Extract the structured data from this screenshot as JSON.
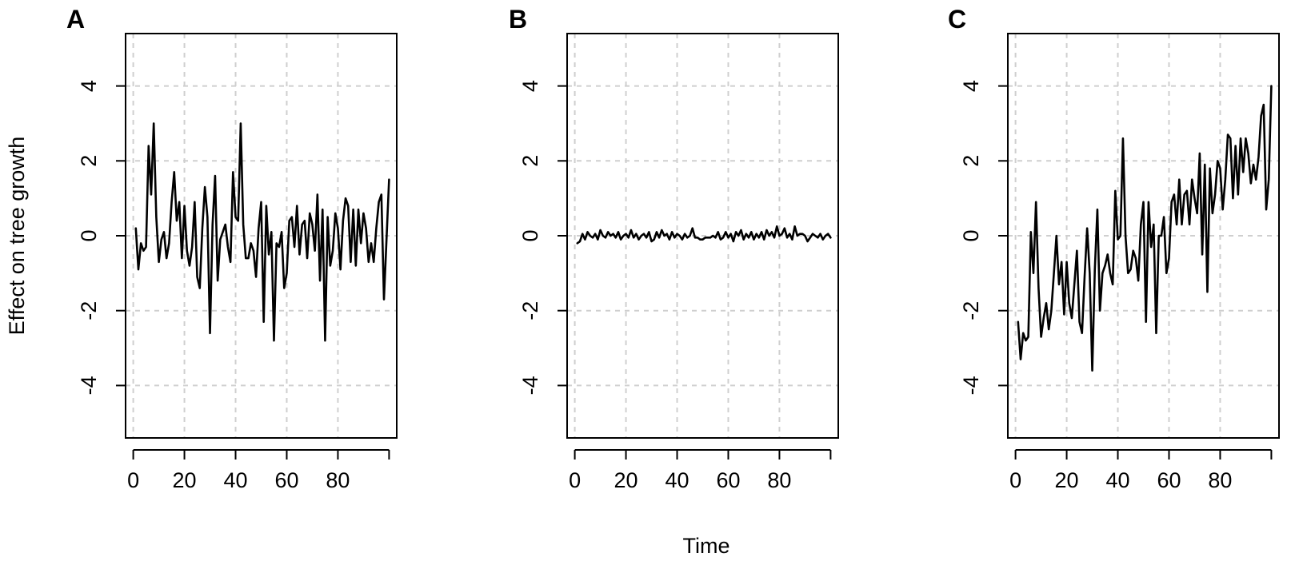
{
  "chart_data": {
    "type": "line",
    "xlabel": "Time",
    "ylabel": "Effect on tree growth",
    "xlim": [
      -3,
      103
    ],
    "ylim": [
      -5.4,
      5.4
    ],
    "x_ticks": [
      0,
      20,
      40,
      60,
      80
    ],
    "y_ticks": [
      -4,
      -2,
      0,
      2,
      4
    ],
    "grid": true,
    "panels": [
      {
        "label": "A",
        "series": [
          {
            "x": [
              1,
              2,
              3,
              4,
              5,
              6,
              7,
              8,
              9,
              10,
              11,
              12,
              13,
              14,
              15,
              16,
              17,
              18,
              19,
              20,
              21,
              22,
              23,
              24,
              25,
              26,
              27,
              28,
              29,
              30,
              31,
              32,
              33,
              34,
              35,
              36,
              37,
              38,
              39,
              40,
              41,
              42,
              43,
              44,
              45,
              46,
              47,
              48,
              49,
              50,
              51,
              52,
              53,
              54,
              55,
              56,
              57,
              58,
              59,
              60,
              61,
              62,
              63,
              64,
              65,
              66,
              67,
              68,
              69,
              70,
              71,
              72,
              73,
              74,
              75,
              76,
              77,
              78,
              79,
              80,
              81,
              82,
              83,
              84,
              85,
              86,
              87,
              88,
              89,
              90,
              91,
              92,
              93,
              94,
              95,
              96,
              97,
              98,
              99,
              100
            ],
            "y": [
              0.2,
              -0.9,
              -0.2,
              -0.4,
              -0.3,
              2.4,
              1.1,
              3.0,
              0.5,
              -0.7,
              -0.1,
              0.1,
              -0.6,
              -0.2,
              0.9,
              1.7,
              0.4,
              0.9,
              -0.6,
              0.8,
              -0.4,
              -0.8,
              -0.3,
              0.9,
              -1.1,
              -1.4,
              0.2,
              1.3,
              0.5,
              -2.6,
              0.3,
              1.6,
              -1.2,
              -0.1,
              0.1,
              0.3,
              -0.3,
              -0.7,
              1.7,
              0.5,
              0.4,
              3.0,
              0.3,
              -0.6,
              -0.6,
              -0.2,
              -0.4,
              -1.1,
              0.2,
              0.9,
              -2.3,
              0.8,
              -0.5,
              0.1,
              -2.8,
              -0.2,
              -0.3,
              0.1,
              -1.4,
              -1.0,
              0.4,
              0.5,
              -0.3,
              0.8,
              -0.5,
              0.3,
              0.4,
              -0.6,
              0.6,
              0.3,
              -0.4,
              1.1,
              -1.2,
              0.7,
              -2.8,
              0.5,
              -0.8,
              -0.4,
              0.6,
              0.2,
              -0.9,
              0.4,
              1.0,
              0.8,
              -0.7,
              0.7,
              -0.8,
              0.7,
              -0.2,
              0.6,
              0.2,
              -0.7,
              -0.2,
              -0.7,
              0.2,
              0.9,
              1.1,
              -1.7,
              -0.1,
              1.5
            ]
          }
        ]
      },
      {
        "label": "B",
        "series": [
          {
            "x": [
              1,
              2,
              3,
              4,
              5,
              6,
              7,
              8,
              9,
              10,
              11,
              12,
              13,
              14,
              15,
              16,
              17,
              18,
              19,
              20,
              21,
              22,
              23,
              24,
              25,
              26,
              27,
              28,
              29,
              30,
              31,
              32,
              33,
              34,
              35,
              36,
              37,
              38,
              39,
              40,
              41,
              42,
              43,
              44,
              45,
              46,
              47,
              48,
              49,
              50,
              51,
              52,
              53,
              54,
              55,
              56,
              57,
              58,
              59,
              60,
              61,
              62,
              63,
              64,
              65,
              66,
              67,
              68,
              69,
              70,
              71,
              72,
              73,
              74,
              75,
              76,
              77,
              78,
              79,
              80,
              81,
              82,
              83,
              84,
              85,
              86,
              87,
              88,
              89,
              90,
              91,
              92,
              93,
              94,
              95,
              96,
              97,
              98,
              99,
              100
            ],
            "y": [
              -0.2,
              -0.15,
              0.05,
              -0.1,
              0.1,
              0.0,
              -0.05,
              0.05,
              -0.1,
              0.15,
              0.0,
              -0.05,
              0.1,
              0.0,
              0.05,
              -0.05,
              0.1,
              -0.1,
              0.0,
              0.05,
              -0.05,
              0.15,
              -0.05,
              0.05,
              -0.1,
              0.0,
              0.05,
              -0.05,
              0.1,
              -0.15,
              -0.1,
              0.1,
              -0.05,
              0.15,
              0.0,
              0.05,
              -0.1,
              0.1,
              -0.05,
              0.05,
              0.0,
              -0.1,
              0.05,
              -0.05,
              0.0,
              0.2,
              -0.05,
              -0.05,
              -0.1,
              -0.1,
              -0.05,
              -0.05,
              -0.05,
              0.0,
              -0.05,
              0.1,
              -0.1,
              -0.05,
              0.1,
              -0.05,
              0.05,
              -0.15,
              0.1,
              0.0,
              0.15,
              -0.1,
              0.05,
              -0.05,
              0.1,
              -0.1,
              0.05,
              -0.05,
              0.1,
              -0.1,
              0.15,
              0.0,
              0.1,
              -0.05,
              0.25,
              0.0,
              0.05,
              0.2,
              -0.05,
              0.05,
              -0.1,
              0.25,
              0.0,
              0.05,
              0.05,
              0.0,
              -0.15,
              -0.05,
              0.05,
              0.0,
              -0.05,
              0.05,
              -0.1,
              0.0,
              0.05,
              -0.05
            ]
          }
        ]
      },
      {
        "label": "C",
        "series": [
          {
            "x": [
              1,
              2,
              3,
              4,
              5,
              6,
              7,
              8,
              9,
              10,
              11,
              12,
              13,
              14,
              15,
              16,
              17,
              18,
              19,
              20,
              21,
              22,
              23,
              24,
              25,
              26,
              27,
              28,
              29,
              30,
              31,
              32,
              33,
              34,
              35,
              36,
              37,
              38,
              39,
              40,
              41,
              42,
              43,
              44,
              45,
              46,
              47,
              48,
              49,
              50,
              51,
              52,
              53,
              54,
              55,
              56,
              57,
              58,
              59,
              60,
              61,
              62,
              63,
              64,
              65,
              66,
              67,
              68,
              69,
              70,
              71,
              72,
              73,
              74,
              75,
              76,
              77,
              78,
              79,
              80,
              81,
              82,
              83,
              84,
              85,
              86,
              87,
              88,
              89,
              90,
              91,
              92,
              93,
              94,
              95,
              96,
              97,
              98,
              99,
              100
            ],
            "y": [
              -2.3,
              -3.3,
              -2.6,
              -2.8,
              -2.7,
              0.1,
              -1.0,
              0.9,
              -1.4,
              -2.7,
              -2.2,
              -1.8,
              -2.5,
              -2.0,
              -1.0,
              0.0,
              -1.3,
              -0.7,
              -2.1,
              -0.7,
              -1.8,
              -2.2,
              -1.3,
              -0.4,
              -2.3,
              -2.6,
              -1.1,
              0.2,
              -1.0,
              -3.6,
              -0.9,
              0.7,
              -2.0,
              -1.0,
              -0.8,
              -0.5,
              -1.0,
              -1.3,
              1.2,
              -0.1,
              0.0,
              2.6,
              0.0,
              -1.0,
              -0.9,
              -0.4,
              -0.6,
              -1.2,
              0.3,
              0.9,
              -2.3,
              0.9,
              -0.3,
              0.3,
              -2.6,
              0.0,
              0.0,
              0.5,
              -1.0,
              -0.6,
              0.9,
              1.1,
              0.3,
              1.5,
              0.3,
              1.1,
              1.2,
              0.3,
              1.5,
              1.0,
              0.6,
              2.2,
              -0.5,
              1.9,
              -1.5,
              1.8,
              0.6,
              1.1,
              2.0,
              1.8,
              0.7,
              1.5,
              2.7,
              2.6,
              1.0,
              2.4,
              1.1,
              2.6,
              1.7,
              2.6,
              2.2,
              1.4,
              1.9,
              1.5,
              2.1,
              3.2,
              3.5,
              0.7,
              1.5,
              4.0
            ]
          }
        ]
      }
    ]
  }
}
